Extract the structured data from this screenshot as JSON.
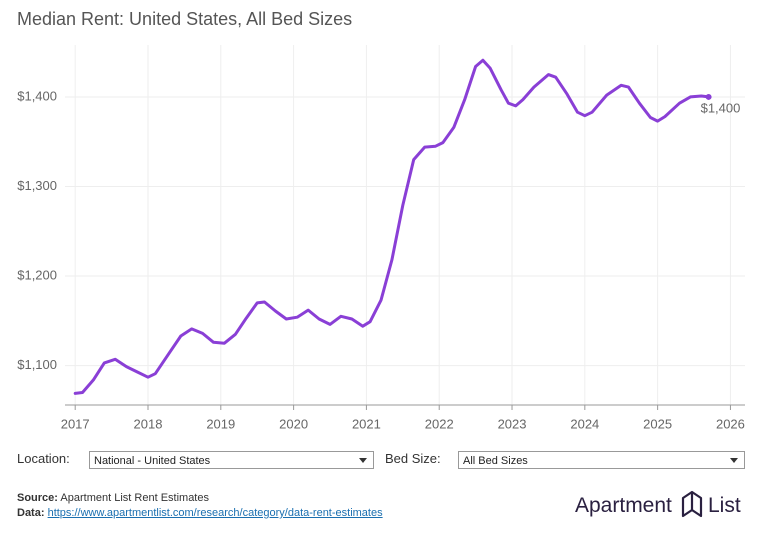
{
  "chart_data": {
    "type": "line",
    "title": "Median Rent: United States, All Bed Sizes",
    "x": [
      2017.0,
      2017.1,
      2017.25,
      2017.4,
      2017.55,
      2017.7,
      2017.85,
      2018.0,
      2018.1,
      2018.3,
      2018.45,
      2018.6,
      2018.75,
      2018.9,
      2019.05,
      2019.2,
      2019.35,
      2019.5,
      2019.6,
      2019.75,
      2019.9,
      2020.05,
      2020.2,
      2020.35,
      2020.5,
      2020.65,
      2020.8,
      2020.95,
      2021.05,
      2021.2,
      2021.35,
      2021.5,
      2021.65,
      2021.8,
      2021.95,
      2022.05,
      2022.2,
      2022.35,
      2022.5,
      2022.6,
      2022.7,
      2022.85,
      2022.95,
      2023.05,
      2023.15,
      2023.3,
      2023.5,
      2023.6,
      2023.75,
      2023.9,
      2024.0,
      2024.1,
      2024.3,
      2024.5,
      2024.6,
      2024.75,
      2024.9,
      2025.0,
      2025.1,
      2025.3,
      2025.45,
      2025.6,
      2025.7
    ],
    "values": [
      1069,
      1070,
      1084,
      1103,
      1107,
      1099,
      1093,
      1087,
      1091,
      1115,
      1133,
      1141,
      1136,
      1126,
      1125,
      1135,
      1153,
      1170,
      1171,
      1161,
      1152,
      1154,
      1162,
      1152,
      1146,
      1155,
      1152,
      1144,
      1149,
      1173,
      1218,
      1279,
      1330,
      1344,
      1345,
      1349,
      1366,
      1397,
      1434,
      1441,
      1432,
      1408,
      1393,
      1390,
      1397,
      1411,
      1425,
      1422,
      1404,
      1383,
      1379,
      1383,
      1402,
      1413,
      1411,
      1393,
      1377,
      1373,
      1378,
      1393,
      1400,
      1401,
      1400
    ],
    "color": "#8a3fd6",
    "xlim": [
      2016.86,
      2026.2
    ],
    "xticks": [
      2017,
      2018,
      2019,
      2020,
      2021,
      2022,
      2023,
      2024,
      2025,
      2026
    ],
    "ylim": [
      1056,
      1458
    ],
    "yticks": [
      {
        "value": 1100,
        "label": "$1,100"
      },
      {
        "value": 1200,
        "label": "$1,200"
      },
      {
        "value": 1300,
        "label": "$1,300"
      },
      {
        "value": 1400,
        "label": "$1,400"
      }
    ],
    "grid": true,
    "annotations": [
      {
        "text": "$1,400",
        "x": 2025.7,
        "y": 1400
      }
    ]
  },
  "controls": [
    {
      "label": "Location:",
      "selected": "National - United States"
    },
    {
      "label": "Bed Size:",
      "selected": "All Bed Sizes"
    }
  ],
  "footer": {
    "source_label": "Source:",
    "source": "Apartment List Rent Estimates",
    "data_label": "Data:",
    "data_link": "https://www.apartmentlist.com/research/category/data-rent-estimates"
  },
  "logo": {
    "left": "Apartment",
    "right": "List"
  }
}
